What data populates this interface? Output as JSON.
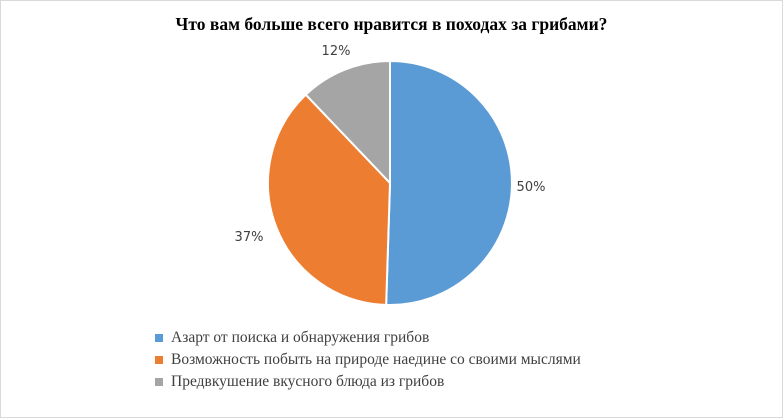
{
  "chart_data": {
    "type": "pie",
    "title": "Что вам больше всего нравится в походах за грибами?",
    "series": [
      {
        "name": "Азарт от поиска и обнаружения грибов",
        "value": 50,
        "label": "50%",
        "color": "#5B9BD5"
      },
      {
        "name": "Возможность побыть на природе наедине со своими мыслями",
        "value": 37,
        "label": "37%",
        "color": "#ED7D31"
      },
      {
        "name": "Предвкушение вкусного блюда из грибов",
        "value": 12,
        "label": "12%",
        "color": "#A5A5A5"
      }
    ],
    "start_angle_deg": 0,
    "direction": "clockwise",
    "legend_position": "bottom"
  }
}
